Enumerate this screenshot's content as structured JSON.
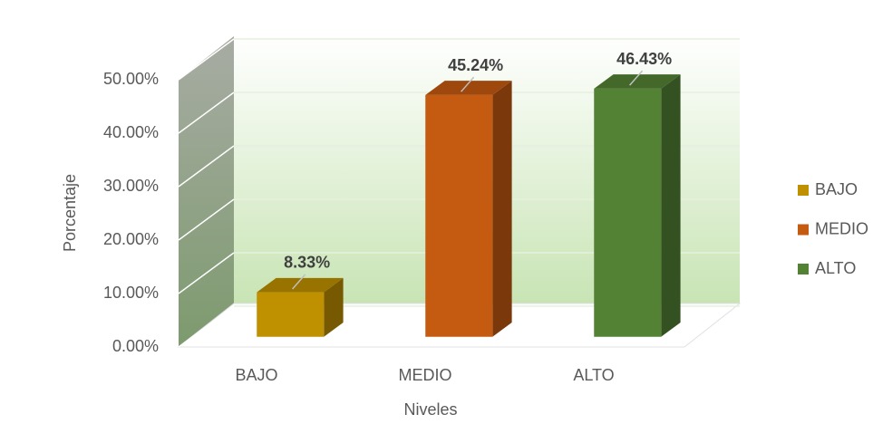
{
  "chart_data": {
    "type": "bar",
    "categories": [
      "BAJO",
      "MEDIO",
      "ALTO"
    ],
    "values": [
      8.33,
      45.24,
      46.43
    ],
    "value_labels": [
      "8.33%",
      "45.24%",
      "46.43%"
    ],
    "colors": [
      "#bf9000",
      "#c55a11",
      "#548235"
    ],
    "xlabel": "Niveles",
    "ylabel": "Porcentaje",
    "ylim": [
      0,
      50
    ],
    "yticks": [
      {
        "value": 0,
        "label": "0.00%"
      },
      {
        "value": 10,
        "label": "10.00%"
      },
      {
        "value": 20,
        "label": "20.00%"
      },
      {
        "value": 30,
        "label": "30.00%"
      },
      {
        "value": 40,
        "label": "40.00%"
      },
      {
        "value": 50,
        "label": "50.00%"
      }
    ],
    "grid": true,
    "legend": "right"
  }
}
